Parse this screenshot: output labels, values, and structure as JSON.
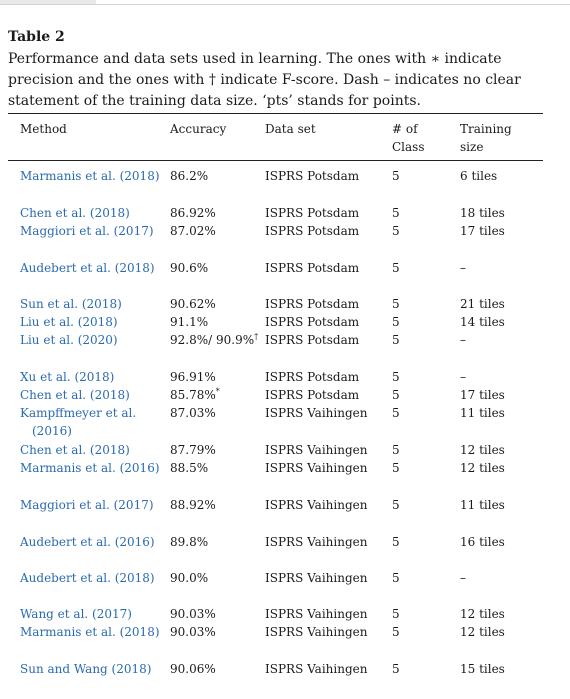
{
  "table": {
    "label": "Table 2",
    "caption": "Performance and data sets used in learning. The ones with ∗ indicate precision and the ones with † indicate F-score. Dash – indicates no clear statement of the training data size. ‘pts’ stands for points.",
    "headers": {
      "method": "Method",
      "accuracy": "Accuracy",
      "dataset": "Data set",
      "classes_line1": "# of",
      "classes_line2": "Class",
      "training_line1": "Training",
      "training_line2": "size"
    },
    "rows": [
      {
        "method": "Marmanis et al. (2018)",
        "accuracy": "86.2%",
        "mark": "",
        "dataset": "ISPRS Potsdam",
        "classes": "5",
        "training": "6 tiles"
      },
      {
        "method": "Chen et al. (2018)",
        "accuracy": "86.92%",
        "mark": "",
        "dataset": "ISPRS Potsdam",
        "classes": "5",
        "training": "18 tiles"
      },
      {
        "method": "Maggiori et al. (2017)",
        "accuracy": "87.02%",
        "mark": "",
        "dataset": "ISPRS Potsdam",
        "classes": "5",
        "training": "17 tiles"
      },
      {
        "method": "Audebert et al. (2018)",
        "accuracy": "90.6%",
        "mark": "",
        "dataset": "ISPRS Potsdam",
        "classes": "5",
        "training": "–"
      },
      {
        "method": "Sun et al. (2018)",
        "accuracy": "90.62%",
        "mark": "",
        "dataset": "ISPRS Potsdam",
        "classes": "5",
        "training": "21 tiles"
      },
      {
        "method": "Liu et al. (2018)",
        "accuracy": "91.1%",
        "mark": "",
        "dataset": "ISPRS Potsdam",
        "classes": "5",
        "training": "14 tiles"
      },
      {
        "method": "Liu et al. (2020)",
        "accuracy": "92.8%/ 90.9%",
        "mark": "†",
        "dataset": "ISPRS Potsdam",
        "classes": "5",
        "training": "–"
      },
      {
        "method": "Xu et al. (2018)",
        "accuracy": "96.91%",
        "mark": "",
        "dataset": "ISPRS Potsdam",
        "classes": "5",
        "training": "–"
      },
      {
        "method": "Chen et al. (2018)",
        "accuracy": "85.78%",
        "mark": "*",
        "dataset": "ISPRS Potsdam",
        "classes": "5",
        "training": "17 tiles"
      },
      {
        "method": "Kampffmeyer et al. (2016)",
        "accuracy": "87.03%",
        "mark": "",
        "dataset": "ISPRS Vaihingen",
        "classes": "5",
        "training": "11 tiles"
      },
      {
        "method": "Chen et al. (2018)",
        "accuracy": "87.79%",
        "mark": "",
        "dataset": "ISPRS Vaihingen",
        "classes": "5",
        "training": "12 tiles"
      },
      {
        "method": "Marmanis et al. (2016)",
        "accuracy": "88.5%",
        "mark": "",
        "dataset": "ISPRS Vaihingen",
        "classes": "5",
        "training": "12 tiles"
      },
      {
        "method": "Maggiori et al. (2017)",
        "accuracy": "88.92%",
        "mark": "",
        "dataset": "ISPRS Vaihingen",
        "classes": "5",
        "training": "11 tiles"
      },
      {
        "method": "Audebert et al. (2016)",
        "accuracy": "89.8%",
        "mark": "",
        "dataset": "ISPRS Vaihingen",
        "classes": "5",
        "training": "16 tiles"
      },
      {
        "method": "Audebert et al. (2018)",
        "accuracy": "90.0%",
        "mark": "",
        "dataset": "ISPRS Vaihingen",
        "classes": "5",
        "training": "–"
      },
      {
        "method": "Wang et al. (2017)",
        "accuracy": "90.03%",
        "mark": "",
        "dataset": "ISPRS Vaihingen",
        "classes": "5",
        "training": "12 tiles"
      },
      {
        "method": "Marmanis et al. (2018)",
        "accuracy": "90.03%",
        "mark": "",
        "dataset": "ISPRS Vaihingen",
        "classes": "5",
        "training": "12 tiles"
      },
      {
        "method": "Sun and Wang (2018)",
        "accuracy": "90.06%",
        "mark": "",
        "dataset": "ISPRS Vaihingen",
        "classes": "5",
        "training": "15 tiles"
      }
    ]
  }
}
